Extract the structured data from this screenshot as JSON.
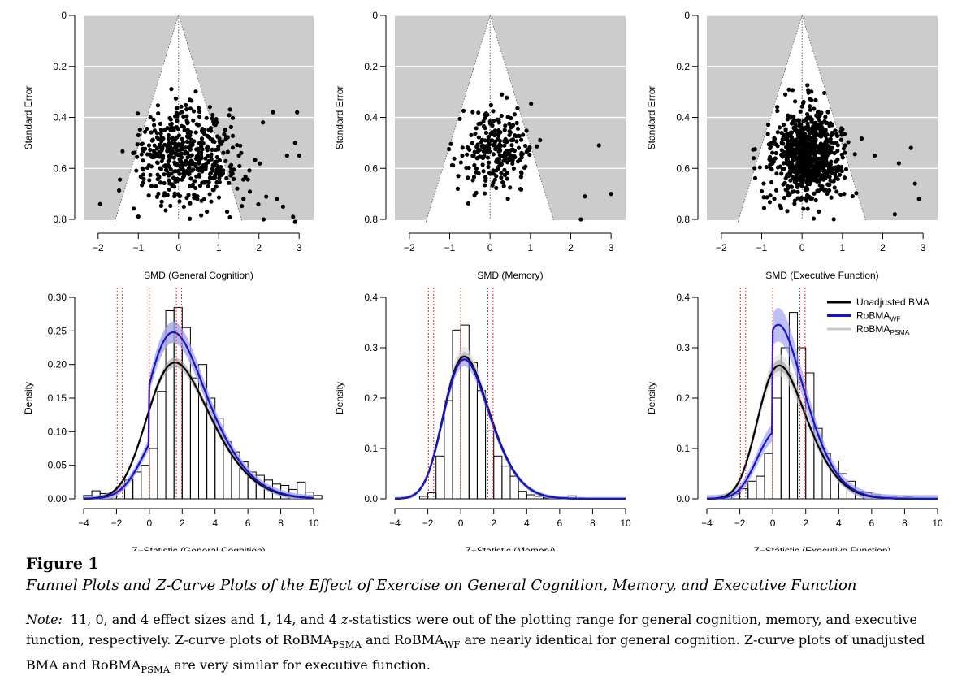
{
  "figure": {
    "label": "Figure 1",
    "title": "Funnel Plots and Z-Curve Plots of the Effect of Exercise on General Cognition, Memory, and Executive Function",
    "note_lead": "Note:",
    "note_parts": [
      {
        "t": "11, 0, and 4 effect sizes and 1, 14, and 4 ",
        "style": "normal"
      },
      {
        "t": "z",
        "style": "italic"
      },
      {
        "t": "-statistics were out of the plotting range for general cognition, memory, and executive function, respectively. Z-curve plots of RoBMA",
        "style": "normal"
      },
      {
        "t": "PSMA",
        "style": "sub"
      },
      {
        "t": " and RoBMA",
        "style": "normal"
      },
      {
        "t": "WF",
        "style": "sub"
      },
      {
        "t": " are nearly identical for general cognition. Z-curve plots of unadjusted BMA and RoBMA",
        "style": "normal"
      },
      {
        "t": "PSMA",
        "style": "sub"
      },
      {
        "t": " are very similar for executive function.",
        "style": "normal"
      }
    ]
  },
  "colors": {
    "funnel_background": "#cccccc",
    "funnel_inner": "#ffffff",
    "points": "#000000",
    "unadjusted": "#000000",
    "unadjusted_band": "#9a9a9a",
    "wf": "#1414c8",
    "wf_band": "#8a8aee",
    "psma": "#c8c8c8",
    "psma_band": "#dcdcdc",
    "significance_lines": "#e03030"
  },
  "legend": {
    "entries": [
      {
        "base": "Unadjusted BMA",
        "sub": "",
        "color": "#000000"
      },
      {
        "base": "RoBMA",
        "sub": "WF",
        "color": "#1414c8"
      },
      {
        "base": "RoBMA",
        "sub": "PSMA",
        "color": "#c8c8c8"
      }
    ]
  },
  "chart_data": [
    {
      "type": "scatter",
      "xlabel": "SMD (General Cognition)",
      "ylabel": "Standard Error",
      "xlim": [
        -2,
        3
      ],
      "ylim": [
        0,
        0.8
      ],
      "y_reversed": true,
      "xticks": [
        "−2",
        "−1",
        "0",
        "1",
        "2",
        "3"
      ],
      "yticks": [
        "0",
        "0.2",
        "0.4",
        "0.6",
        "0.8"
      ],
      "funnel": {
        "center": 0,
        "z": 1.96
      },
      "points": {
        "count": 500,
        "x_mean": 0.25,
        "x_sd": 0.55,
        "se_mean": 0.55,
        "se_sd": 0.095,
        "se_min": 0.23,
        "extra": [
          [
            -1.95,
            0.74
          ],
          [
            -1.0,
            0.47
          ],
          [
            2.35,
            0.38
          ],
          [
            2.95,
            0.38
          ],
          [
            2.9,
            0.5
          ],
          [
            3.0,
            0.55
          ],
          [
            2.7,
            0.55
          ],
          [
            2.85,
            0.79
          ],
          [
            2.9,
            0.81
          ],
          [
            2.1,
            0.42
          ],
          [
            2.6,
            0.75
          ],
          [
            2.45,
            0.72
          ]
        ]
      }
    },
    {
      "type": "scatter",
      "xlabel": "SMD (Memory)",
      "ylabel": "Standard Error",
      "xlim": [
        -2,
        3
      ],
      "ylim": [
        0,
        0.8
      ],
      "y_reversed": true,
      "xticks": [
        "−2",
        "−1",
        "0",
        "1",
        "2",
        "3"
      ],
      "yticks": [
        "0",
        "0.2",
        "0.4",
        "0.6",
        "0.8"
      ],
      "funnel": {
        "center": 0,
        "z": 1.96
      },
      "points": {
        "count": 250,
        "x_mean": 0.15,
        "x_sd": 0.38,
        "se_mean": 0.53,
        "se_sd": 0.075,
        "se_min": 0.31,
        "extra": [
          [
            2.7,
            0.51
          ],
          [
            2.35,
            0.71
          ],
          [
            3.0,
            0.7
          ],
          [
            2.25,
            0.8
          ],
          [
            -0.8,
            0.68
          ]
        ]
      }
    },
    {
      "type": "scatter",
      "xlabel": "SMD (Executive Function)",
      "ylabel": "Standard Error",
      "xlim": [
        -2,
        3
      ],
      "ylim": [
        0,
        0.8
      ],
      "y_reversed": true,
      "xticks": [
        "−2",
        "−1",
        "0",
        "1",
        "2",
        "3"
      ],
      "yticks": [
        "0",
        "0.2",
        "0.4",
        "0.6",
        "0.8"
      ],
      "funnel": {
        "center": 0,
        "z": 1.96
      },
      "points": {
        "count": 800,
        "x_mean": 0.12,
        "x_sd": 0.38,
        "se_mean": 0.55,
        "se_sd": 0.09,
        "se_min": 0.23,
        "extra": [
          [
            -1.2,
            0.56
          ],
          [
            2.7,
            0.52
          ],
          [
            2.4,
            0.58
          ],
          [
            2.8,
            0.66
          ],
          [
            2.9,
            0.72
          ],
          [
            2.3,
            0.78
          ],
          [
            1.8,
            0.55
          ],
          [
            -1.0,
            0.69
          ]
        ]
      }
    },
    {
      "type": "bar",
      "xlabel": "Z−Statistic (General Cognition)",
      "ylabel": "Density",
      "xlim": [
        -4,
        10
      ],
      "ylim": [
        0,
        0.3
      ],
      "xticks": [
        "−4",
        "−2",
        "0",
        "2",
        "4",
        "6",
        "8",
        "10"
      ],
      "yticks": [
        "0.00",
        "0.05",
        "0.10",
        "0.15",
        "0.20",
        "0.25",
        "0.30"
      ],
      "bin_width": 0.5,
      "bin_start": -4,
      "histogram": [
        0.005,
        0.012,
        0.008,
        0.008,
        0.018,
        0.028,
        0.04,
        0.05,
        0.075,
        0.16,
        0.28,
        0.285,
        0.255,
        0.18,
        0.2,
        0.15,
        0.12,
        0.085,
        0.07,
        0.055,
        0.04,
        0.035,
        0.028,
        0.022,
        0.02,
        0.014,
        0.025,
        0.01,
        0.005
      ],
      "significance_lines": [
        -1.96,
        -1.645,
        0,
        1.645,
        1.96
      ],
      "curves": {
        "unadjusted": {
          "type": "skew_normal",
          "xi": 0.0,
          "omega": 3.0,
          "alpha": 2.2,
          "band": 0.008
        },
        "wf": {
          "type": "piecewise",
          "neg_scale": 0.62,
          "pos_scale": 1.28,
          "base": "unadjusted",
          "band": 0.015
        },
        "psma": {
          "type": "piecewise",
          "neg_scale": 0.62,
          "pos_scale": 1.28,
          "base": "unadjusted",
          "band": 0.015
        }
      }
    },
    {
      "type": "bar",
      "xlabel": "Z−Statistic (Memory)",
      "ylabel": "Density",
      "xlim": [
        -4,
        10
      ],
      "ylim": [
        0,
        0.4
      ],
      "xticks": [
        "−4",
        "−2",
        "0",
        "2",
        "4",
        "6",
        "8",
        "10"
      ],
      "yticks": [
        "0.0",
        "0.1",
        "0.2",
        "0.3",
        "0.4"
      ],
      "bin_width": 0.5,
      "bin_start": -4,
      "histogram": [
        0,
        0,
        0,
        0.005,
        0.012,
        0.085,
        0.195,
        0.335,
        0.345,
        0.27,
        0.215,
        0.135,
        0.085,
        0.065,
        0.045,
        0.015,
        0.008,
        0.005,
        0.002,
        0.002,
        0.003,
        0.006
      ],
      "significance_lines": [
        -1.96,
        -1.645,
        0,
        1.645,
        1.96
      ],
      "curves": {
        "unadjusted": {
          "type": "skew_normal",
          "xi": -0.9,
          "omega": 2.1,
          "alpha": 2.0,
          "band": 0.008
        },
        "wf": {
          "type": "scaled",
          "scale": 0.98,
          "base": "unadjusted",
          "band": 0.012
        },
        "psma": {
          "type": "scaled",
          "scale": 1.02,
          "base": "unadjusted",
          "band": 0.012
        }
      }
    },
    {
      "type": "bar",
      "xlabel": "Z−Statistic (Executive Function)",
      "ylabel": "Density",
      "xlim": [
        -4,
        10
      ],
      "ylim": [
        0,
        0.4
      ],
      "xticks": [
        "−4",
        "−2",
        "0",
        "2",
        "4",
        "6",
        "8",
        "10"
      ],
      "yticks": [
        "0.0",
        "0.1",
        "0.2",
        "0.3",
        "0.4"
      ],
      "bin_width": 0.5,
      "bin_start": -4,
      "histogram": [
        0,
        0.002,
        0.006,
        0.01,
        0.02,
        0.035,
        0.045,
        0.09,
        0.2,
        0.3,
        0.37,
        0.3,
        0.25,
        0.14,
        0.09,
        0.075,
        0.05,
        0.035,
        0.015,
        0.012,
        0.008,
        0.005,
        0.004,
        0.002,
        0.004
      ],
      "significance_lines": [
        -1.96,
        -1.645,
        0,
        1.645,
        1.96
      ],
      "curves": {
        "unadjusted": {
          "type": "skew_normal",
          "xi": -0.8,
          "omega": 2.3,
          "alpha": 2.2,
          "band": 0.01
        },
        "wf": {
          "type": "piecewise",
          "neg_scale": 0.52,
          "pos_scale": 1.32,
          "base": "unadjusted",
          "band": 0.025
        },
        "psma": {
          "type": "scaled",
          "scale": 1.0,
          "base": "unadjusted",
          "band": 0.02
        }
      }
    }
  ]
}
